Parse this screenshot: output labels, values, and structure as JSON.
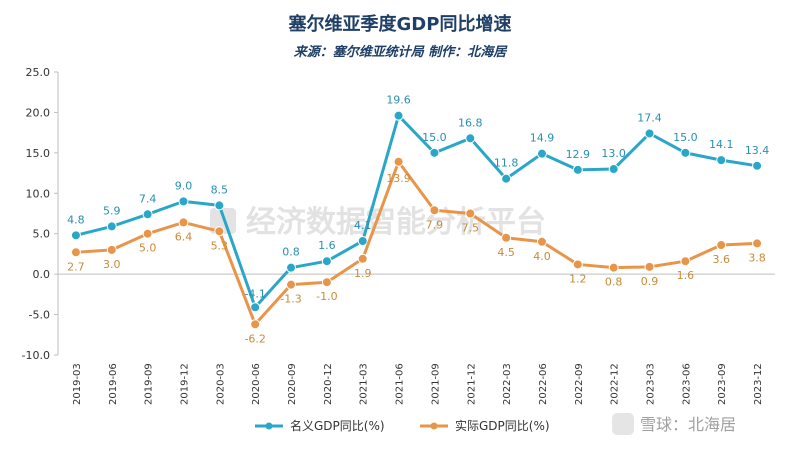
{
  "colors": {
    "nominal": "#2aa6c8",
    "real": "#e8954a",
    "title": "#1f3f66"
  },
  "chart_data": {
    "type": "line",
    "title": "塞尔维亚季度GDP同比增速",
    "subtitle": "来源：塞尔维亚统计局  制作：北海居",
    "xlabel": "",
    "ylabel": "",
    "ylim": [
      -10,
      25
    ],
    "yticks": [
      "25.0",
      "20.0",
      "15.0",
      "10.0",
      "5.0",
      "0.0",
      "-5.0",
      "-10.0"
    ],
    "ytick_values": [
      25,
      20,
      15,
      10,
      5,
      0,
      -5,
      -10
    ],
    "grid": false,
    "legend_position": "bottom",
    "categories": [
      "2019-03",
      "2019-06",
      "2019-09",
      "2019-12",
      "2020-03",
      "2020-06",
      "2020-09",
      "2020-12",
      "2021-03",
      "2021-06",
      "2021-09",
      "2021-12",
      "2022-03",
      "2022-06",
      "2022-09",
      "2022-12",
      "2023-03",
      "2023-06",
      "2023-09",
      "2023-12"
    ],
    "series": [
      {
        "name": "名义GDP同比(%)",
        "values": [
          4.8,
          5.9,
          7.4,
          9.0,
          8.5,
          -4.1,
          0.8,
          1.6,
          4.1,
          19.6,
          15.0,
          16.8,
          11.8,
          14.9,
          12.9,
          13.0,
          17.4,
          15.0,
          14.1,
          13.4
        ],
        "labels": [
          "4.8",
          "5.9",
          "7.4",
          "9.0",
          "8.5",
          "-4.1",
          "0.8",
          "1.6",
          "4.1",
          "19.6",
          "15.0",
          "16.8",
          "11.8",
          "14.9",
          "12.9",
          "13.0",
          "17.4",
          "15.0",
          "14.1",
          "13.4"
        ]
      },
      {
        "name": "实际GDP同比(%)",
        "values": [
          2.7,
          3.0,
          5.0,
          6.4,
          5.3,
          -6.2,
          -1.3,
          -1.0,
          1.9,
          13.9,
          7.9,
          7.5,
          4.5,
          4.0,
          1.2,
          0.8,
          0.9,
          1.6,
          3.6,
          3.8
        ],
        "labels": [
          "2.7",
          "3.0",
          "5.0",
          "6.4",
          "5.3",
          "-6.2",
          "-1.3",
          "-1.0",
          "1.9",
          "13.9",
          "7.9",
          "7.5",
          "4.5",
          "4.0",
          "1.2",
          "0.8",
          "0.9",
          "1.6",
          "3.6",
          "3.8"
        ]
      }
    ]
  },
  "watermark": {
    "text": "经济数据智能分析平台",
    "corner_text": "雪球：北海居"
  }
}
